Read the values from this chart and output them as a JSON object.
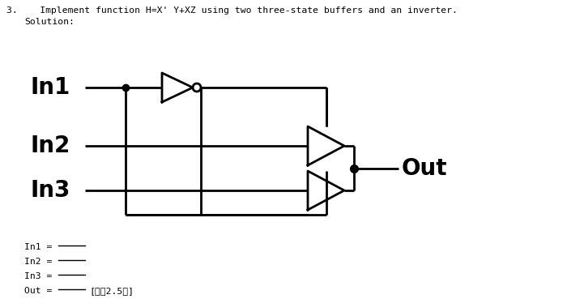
{
  "title_line1": "3.    Implement function H=X' Y+XZ using two three-state buffers and an inverter.",
  "title_line2": "Solution:",
  "in1_label": "In1",
  "in2_label": "In2",
  "in3_label": "In3",
  "out_label": "Out",
  "bottom_labels": [
    "In1 =",
    "In2 =",
    "In3 =",
    "Out ="
  ],
  "bottom_note": "[每祲2.5分]",
  "bg_color": "#ffffff",
  "line_color": "#000000",
  "figw": 7.0,
  "figh": 3.69,
  "dpi": 100
}
